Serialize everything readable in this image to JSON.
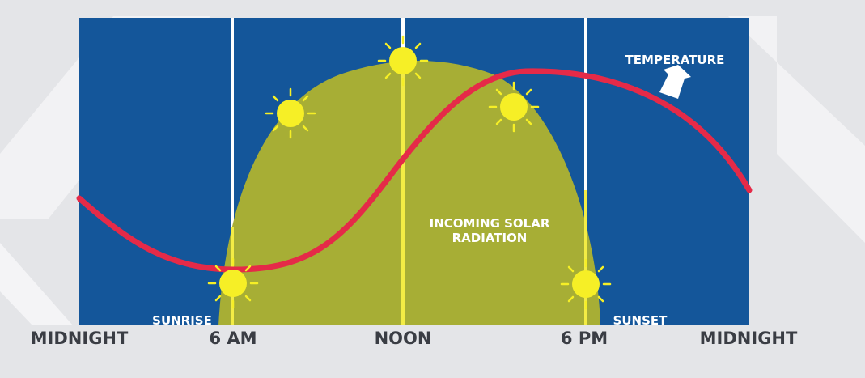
{
  "axis_labels": [
    "MIDNIGHT",
    "6 AM",
    "NOON",
    "6 PM",
    "MIDNIGHT"
  ],
  "annotations": {
    "sunrise": "SUNRISE",
    "sunset": "SUNSET",
    "temperature": "TEMPERATURE",
    "solar_radiation": [
      "INCOMING SOLAR",
      "RADIATION"
    ]
  }
}
